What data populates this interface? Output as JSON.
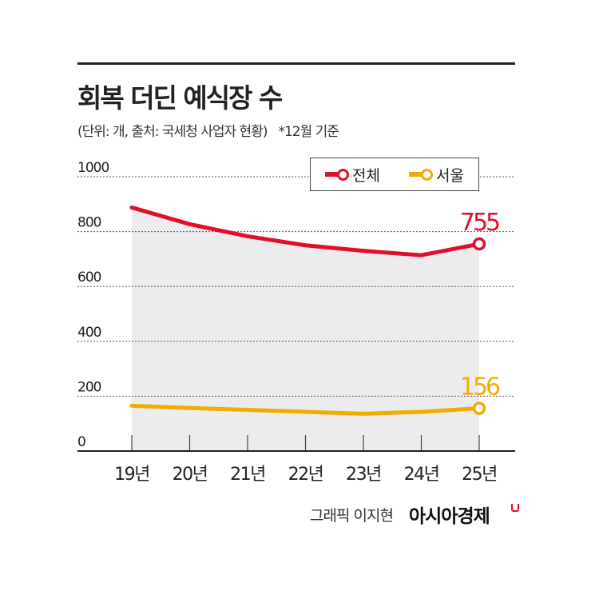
{
  "chart_data": {
    "type": "line",
    "title": "회복 더딘 예식장 수",
    "subtitle": "(단위: 개, 출처: 국세청 사업자 현황)",
    "note": "*12월 기준",
    "categories": [
      "19년",
      "20년",
      "21년",
      "22년",
      "23년",
      "24년",
      "25년"
    ],
    "ylim": [
      0,
      1000
    ],
    "yticks": [
      0,
      200,
      400,
      600,
      800,
      1000
    ],
    "grid": true,
    "legend_position": "top-right",
    "series": [
      {
        "name": "전체",
        "color": "#e0102a",
        "values": [
          888,
          827,
          783,
          750,
          730,
          714,
          755
        ],
        "end_label": "755"
      },
      {
        "name": "서울",
        "color": "#f2ac00",
        "values": [
          165,
          157,
          150,
          143,
          136,
          143,
          156
        ],
        "end_label": "156"
      }
    ]
  },
  "credit": "그래픽 이지현",
  "brand": "아시아경제"
}
